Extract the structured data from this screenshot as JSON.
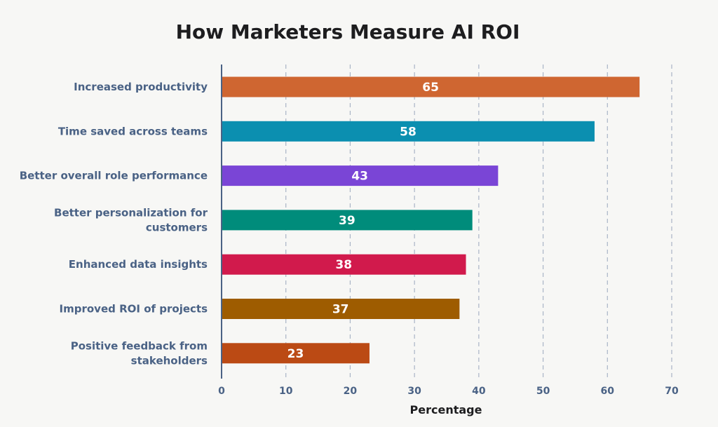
{
  "chart_data": {
    "type": "bar",
    "orientation": "horizontal",
    "title": "How Marketers Measure AI ROI",
    "xlabel": "Percentage",
    "ylabel": "",
    "xlim": [
      0,
      70
    ],
    "xticks": [
      0,
      10,
      20,
      30,
      40,
      50,
      60,
      70
    ],
    "grid": true,
    "categories": [
      [
        "Increased productivity"
      ],
      [
        "Time saved across teams"
      ],
      [
        "Better overall role performance"
      ],
      [
        "Better personalization for",
        "customers"
      ],
      [
        "Enhanced data insights"
      ],
      [
        "Improved ROI of projects"
      ],
      [
        "Positive feedback from",
        "stakeholders"
      ]
    ],
    "values": [
      65,
      58,
      43,
      39,
      38,
      37,
      23
    ],
    "colors": [
      "#cf6631",
      "#0b8fb0",
      "#7a45d6",
      "#008c7b",
      "#d11a4c",
      "#9e5c00",
      "#bb4a14"
    ]
  }
}
